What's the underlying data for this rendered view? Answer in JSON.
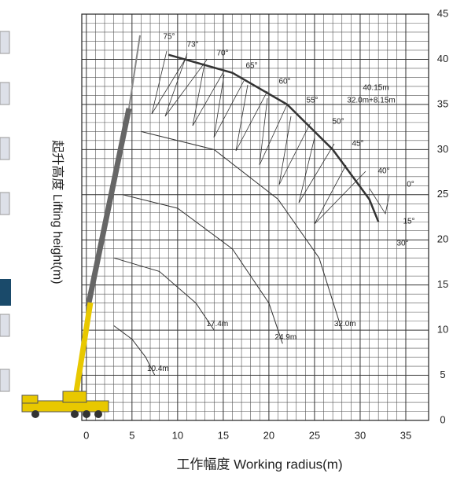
{
  "chart_data": {
    "type": "range",
    "x_label": "工作幅度 Working radius(m)",
    "y_label": "起升高度 Lifting height(m)",
    "xlim": [
      -0.5,
      37.5
    ],
    "ylim": [
      0,
      45
    ],
    "xticks": [
      0,
      5,
      10,
      15,
      20,
      25,
      30,
      35
    ],
    "yticks": [
      0,
      5,
      10,
      15,
      20,
      25,
      30,
      35,
      40,
      45
    ],
    "grid": true,
    "curves": [
      {
        "name": "10.4m",
        "x": [
          3,
          5,
          6.5,
          7.5
        ],
        "y": [
          10.5,
          9,
          7,
          5
        ]
      },
      {
        "name": "17.4m",
        "x": [
          3,
          8,
          12,
          14
        ],
        "y": [
          18,
          16.5,
          13,
          10
        ]
      },
      {
        "name": "24.9m",
        "x": [
          4,
          10,
          16,
          20,
          21.5
        ],
        "y": [
          25,
          23.5,
          19,
          13,
          8.5
        ]
      },
      {
        "name": "32.0m",
        "x": [
          6,
          14,
          21,
          25.5,
          28
        ],
        "y": [
          32,
          30,
          24.5,
          18,
          10
        ]
      },
      {
        "name": "40.15m",
        "x": [
          9,
          16,
          22,
          27,
          31,
          32
        ],
        "y": [
          40.5,
          38.5,
          35,
          30,
          24.5,
          22
        ]
      }
    ],
    "extension_label": "32.0m+8.15m",
    "angle_labels": [
      "75°",
      "73°",
      "70°",
      "65°",
      "60°",
      "55°",
      "50°",
      "45°",
      "40°",
      "0°",
      "15°",
      "30°"
    ]
  }
}
